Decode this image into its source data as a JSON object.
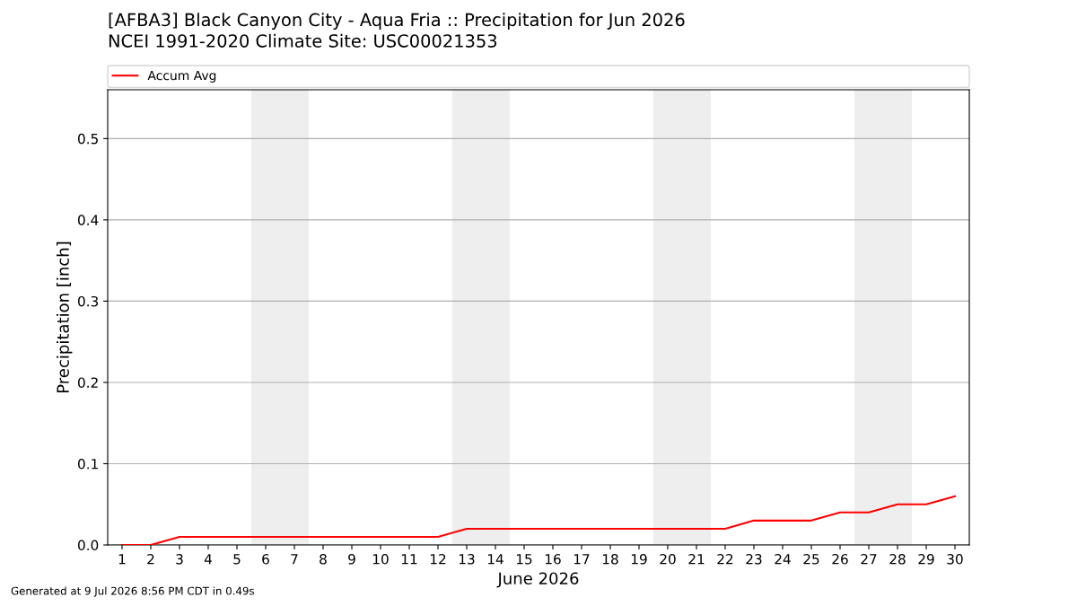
{
  "chart_data": {
    "type": "line",
    "title": "[AFBA3] Black Canyon City - Aqua Fria :: Precipitation for Jun 2026",
    "subtitle": "NCEI 1991-2020 Climate Site: USC00021353",
    "xlabel": "June 2026",
    "ylabel": "Precipitation [inch]",
    "x": [
      1,
      2,
      3,
      4,
      5,
      6,
      7,
      8,
      9,
      10,
      11,
      12,
      13,
      14,
      15,
      16,
      17,
      18,
      19,
      20,
      21,
      22,
      23,
      24,
      25,
      26,
      27,
      28,
      29,
      30
    ],
    "series": [
      {
        "name": "Accum Avg",
        "color": "#ff0000",
        "values": [
          0,
          0,
          0.01,
          0.01,
          0.01,
          0.01,
          0.01,
          0.01,
          0.01,
          0.01,
          0.01,
          0.01,
          0.02,
          0.02,
          0.02,
          0.02,
          0.02,
          0.02,
          0.02,
          0.02,
          0.02,
          0.02,
          0.03,
          0.03,
          0.03,
          0.04,
          0.04,
          0.05,
          0.05,
          0.06
        ]
      }
    ],
    "xlim": [
      0.5,
      30.5
    ],
    "xticks": [
      1,
      2,
      3,
      4,
      5,
      6,
      7,
      8,
      9,
      10,
      11,
      12,
      13,
      14,
      15,
      16,
      17,
      18,
      19,
      20,
      21,
      22,
      23,
      24,
      25,
      26,
      27,
      28,
      29,
      30
    ],
    "ylim": [
      0,
      0.56
    ],
    "yticks": [
      {
        "value": 0,
        "label": "0.0"
      },
      0.1,
      0.2,
      0.3,
      0.4,
      0.5
    ],
    "bands": [
      {
        "axis": "x",
        "from": 5.5,
        "to": 7.5,
        "color": "#eeeeee"
      },
      {
        "axis": "x",
        "from": 12.5,
        "to": 14.5,
        "color": "#eeeeee"
      },
      {
        "axis": "x",
        "from": 19.5,
        "to": 21.5,
        "color": "#eeeeee"
      },
      {
        "axis": "x",
        "from": 26.5,
        "to": 28.5,
        "color": "#eeeeee"
      }
    ],
    "grid": "y",
    "legend": "top",
    "marker": "none",
    "line_style": "solid",
    "annotations": [
      "Generated at 9 Jul 2026 8:56 PM CDT in 0.49s"
    ]
  }
}
